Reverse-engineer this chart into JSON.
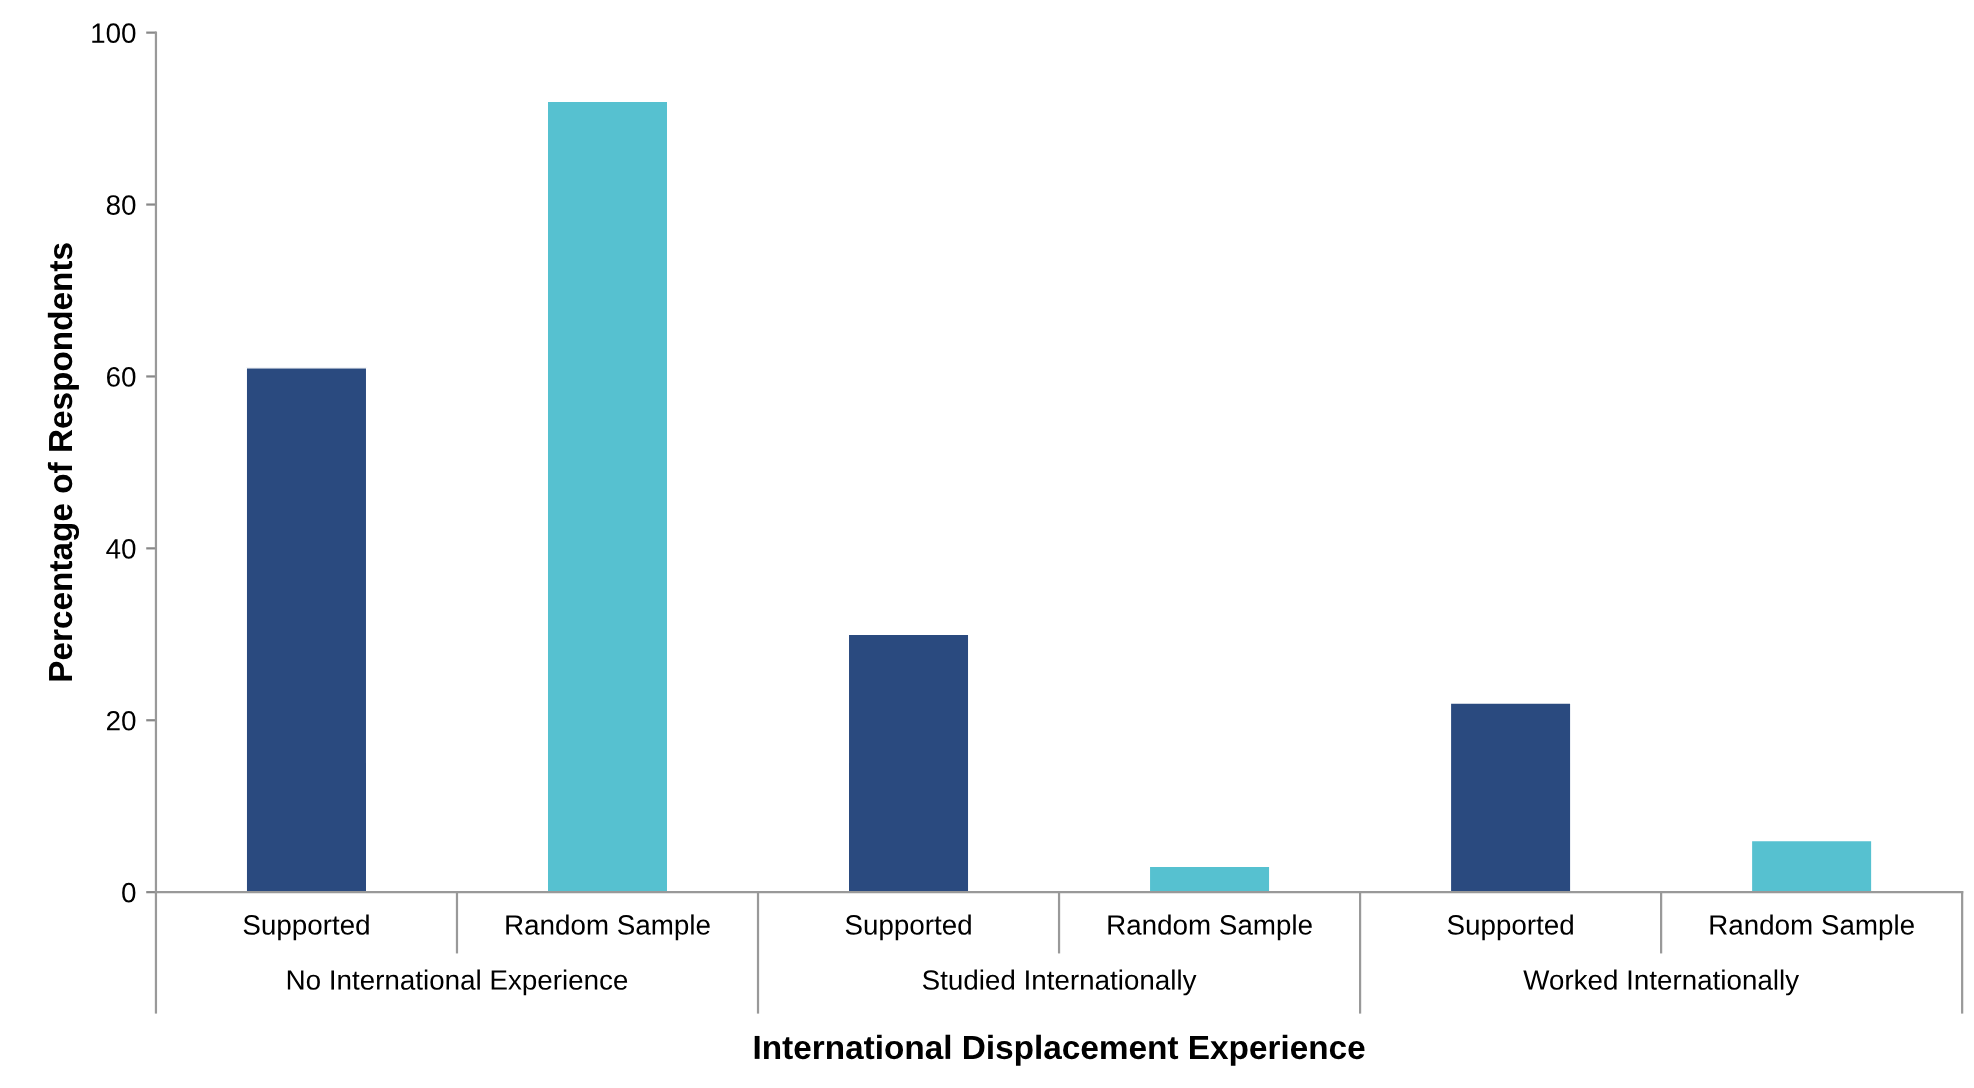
{
  "chart_data": {
    "type": "bar",
    "xlabel": "International Displacement Experience",
    "ylabel": "Percentage of Respondents",
    "categories": [
      "Supported",
      "Random Sample",
      "Supported",
      "Random Sample",
      "Supported",
      "Random Sample"
    ],
    "values": [
      61,
      92,
      30,
      3,
      22,
      6
    ],
    "colors": [
      "#2a4a7f",
      "#56c1d0",
      "#2a4a7f",
      "#56c1d0",
      "#2a4a7f",
      "#56c1d0"
    ],
    "annotations": [
      "No International Experience",
      "Studied Internationally",
      "Worked Internationally"
    ],
    "ylim": [
      0,
      100
    ],
    "yticks": [
      0,
      20,
      40,
      60,
      80,
      100
    ],
    "grid": false,
    "legend": false
  }
}
